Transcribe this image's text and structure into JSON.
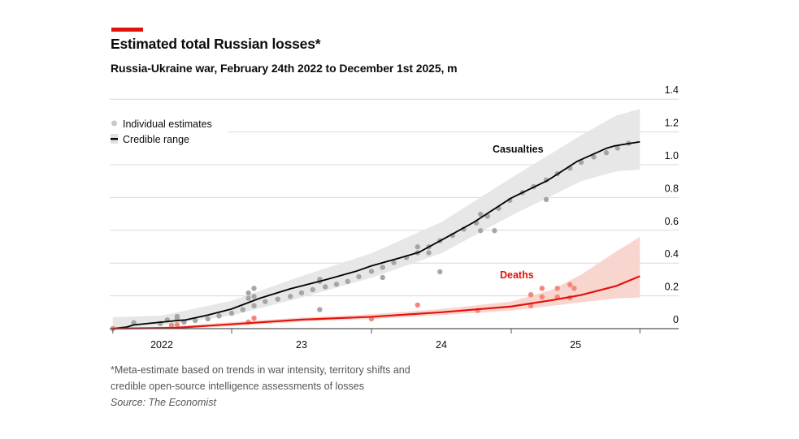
{
  "title": "Estimated total Russian losses*",
  "subtitle": "Russia-Ukraine war, February 24th 2022 to December 1st 2025, m",
  "footnote_lines": [
    "*Meta-estimate based on trends in war intensity, territory shifts and",
    "credible open-source intelligence assessments of losses"
  ],
  "source": "Source: The Economist",
  "colors": {
    "accent": "#e3120b",
    "casualties_line": "#000000",
    "casualties_band": "#e6e6e6",
    "casualties_dots": "#a6a6a6",
    "deaths_line": "#e3120b",
    "deaths_band": "#f9d3cc",
    "deaths_dots": "#f2877a",
    "grid": "#d9d9d9"
  },
  "chart_data": {
    "type": "line",
    "title": "Estimated total Russian losses*",
    "subtitle": "Russia-Ukraine war, February 24th 2022 to December 1st 2025, m",
    "xlabel": "",
    "ylabel": "",
    "xlim": [
      2022.15,
      2025.92
    ],
    "ylim": [
      0,
      1.4
    ],
    "yticks": [
      0,
      0.2,
      0.4,
      0.6,
      0.8,
      1.0,
      1.2,
      1.4
    ],
    "ytick_labels": [
      "0",
      "0.2",
      "0.4",
      "0.6",
      "0.8",
      "1.0",
      "1.2",
      "1.4"
    ],
    "xtick_labels": [
      {
        "label": "2022",
        "at": 2022.5
      },
      {
        "label": "23",
        "at": 2023.5
      },
      {
        "label": "24",
        "at": 2024.5
      },
      {
        "label": "25",
        "at": 2025.46
      }
    ],
    "xtick_marks": [
      2022.15,
      2023,
      2024,
      2025,
      2025.92
    ],
    "grid": true,
    "y_axis_position": "right",
    "legend": {
      "position": "top-left",
      "items": [
        {
          "label": "Individual estimates",
          "marker": "dot"
        },
        {
          "label": "Credible range",
          "marker": "band-with-line"
        }
      ]
    },
    "series": [
      {
        "name": "Casualties",
        "line": [
          [
            2022.15,
            0
          ],
          [
            2022.25,
            0.01
          ],
          [
            2022.3,
            0.023
          ],
          [
            2022.62,
            0.05
          ],
          [
            2022.67,
            0.053
          ],
          [
            2022.83,
            0.083
          ],
          [
            2023.0,
            0.12
          ],
          [
            2023.2,
            0.185
          ],
          [
            2023.42,
            0.243
          ],
          [
            2023.68,
            0.3
          ],
          [
            2023.89,
            0.35
          ],
          [
            2024.0,
            0.383
          ],
          [
            2024.21,
            0.433
          ],
          [
            2024.34,
            0.466
          ],
          [
            2024.52,
            0.549
          ],
          [
            2024.73,
            0.648
          ],
          [
            2025.0,
            0.797
          ],
          [
            2025.16,
            0.863
          ],
          [
            2025.26,
            0.904
          ],
          [
            2025.47,
            1.02
          ],
          [
            2025.68,
            1.1
          ],
          [
            2025.74,
            1.115
          ],
          [
            2025.92,
            1.14
          ]
        ],
        "band_upper": [
          [
            2022.15,
            0.07
          ],
          [
            2022.5,
            0.08
          ],
          [
            2023.0,
            0.17
          ],
          [
            2023.5,
            0.32
          ],
          [
            2024.0,
            0.46
          ],
          [
            2024.5,
            0.65
          ],
          [
            2025.0,
            0.92
          ],
          [
            2025.5,
            1.18
          ],
          [
            2025.75,
            1.3
          ],
          [
            2025.92,
            1.34
          ]
        ],
        "band_lower": [
          [
            2022.15,
            0
          ],
          [
            2022.5,
            0.02
          ],
          [
            2023.0,
            0.08
          ],
          [
            2023.5,
            0.19
          ],
          [
            2024.0,
            0.31
          ],
          [
            2024.5,
            0.46
          ],
          [
            2025.0,
            0.69
          ],
          [
            2025.5,
            0.9
          ],
          [
            2025.75,
            0.96
          ],
          [
            2025.92,
            0.97
          ]
        ],
        "estimates": [
          [
            2022.3,
            0.036
          ],
          [
            2022.49,
            0.031
          ],
          [
            2022.54,
            0.053
          ],
          [
            2022.61,
            0.074
          ],
          [
            2022.61,
            0.061
          ],
          [
            2022.66,
            0.04
          ],
          [
            2022.74,
            0.05
          ],
          [
            2022.83,
            0.06
          ],
          [
            2022.91,
            0.078
          ],
          [
            2023.0,
            0.094
          ],
          [
            2023.08,
            0.116
          ],
          [
            2023.12,
            0.218
          ],
          [
            2023.12,
            0.185
          ],
          [
            2023.16,
            0.246
          ],
          [
            2023.16,
            0.197
          ],
          [
            2023.16,
            0.14
          ],
          [
            2023.24,
            0.165
          ],
          [
            2023.33,
            0.18
          ],
          [
            2023.42,
            0.197
          ],
          [
            2023.5,
            0.218
          ],
          [
            2023.58,
            0.238
          ],
          [
            2023.63,
            0.301
          ],
          [
            2023.63,
            0.288
          ],
          [
            2023.63,
            0.116
          ],
          [
            2023.67,
            0.255
          ],
          [
            2023.75,
            0.271
          ],
          [
            2023.83,
            0.288
          ],
          [
            2023.91,
            0.317
          ],
          [
            2024.0,
            0.35
          ],
          [
            2024.08,
            0.374
          ],
          [
            2024.08,
            0.312
          ],
          [
            2024.16,
            0.403
          ],
          [
            2024.25,
            0.433
          ],
          [
            2024.33,
            0.499
          ],
          [
            2024.33,
            0.463
          ],
          [
            2024.41,
            0.499
          ],
          [
            2024.41,
            0.463
          ],
          [
            2024.49,
            0.536
          ],
          [
            2024.49,
            0.347
          ],
          [
            2024.58,
            0.569
          ],
          [
            2024.66,
            0.607
          ],
          [
            2024.75,
            0.645
          ],
          [
            2024.78,
            0.698
          ],
          [
            2024.78,
            0.598
          ],
          [
            2024.83,
            0.686
          ],
          [
            2024.88,
            0.598
          ],
          [
            2024.91,
            0.734
          ],
          [
            2024.99,
            0.783
          ],
          [
            2025.08,
            0.83
          ],
          [
            2025.16,
            0.866
          ],
          [
            2025.25,
            0.907
          ],
          [
            2025.25,
            0.788
          ],
          [
            2025.33,
            0.945
          ],
          [
            2025.42,
            0.979
          ],
          [
            2025.5,
            1.015
          ],
          [
            2025.59,
            1.048
          ],
          [
            2025.68,
            1.073
          ],
          [
            2025.76,
            1.102
          ],
          [
            2025.84,
            1.131
          ]
        ]
      },
      {
        "name": "Deaths",
        "line": [
          [
            2022.15,
            0
          ],
          [
            2022.6,
            0.005
          ],
          [
            2023.0,
            0.027
          ],
          [
            2023.5,
            0.055
          ],
          [
            2024.0,
            0.072
          ],
          [
            2024.5,
            0.1
          ],
          [
            2025.0,
            0.135
          ],
          [
            2025.3,
            0.175
          ],
          [
            2025.5,
            0.205
          ],
          [
            2025.75,
            0.26
          ],
          [
            2025.92,
            0.32
          ]
        ],
        "band_upper": [
          [
            2022.15,
            0.005
          ],
          [
            2022.6,
            0.015
          ],
          [
            2023.0,
            0.04
          ],
          [
            2023.5,
            0.068
          ],
          [
            2024.0,
            0.088
          ],
          [
            2024.5,
            0.12
          ],
          [
            2025.0,
            0.165
          ],
          [
            2025.3,
            0.24
          ],
          [
            2025.5,
            0.33
          ],
          [
            2025.75,
            0.47
          ],
          [
            2025.92,
            0.56
          ]
        ],
        "band_lower": [
          [
            2022.15,
            0
          ],
          [
            2022.6,
            0
          ],
          [
            2023.0,
            0.015
          ],
          [
            2023.5,
            0.043
          ],
          [
            2024.0,
            0.058
          ],
          [
            2024.5,
            0.082
          ],
          [
            2025.0,
            0.11
          ],
          [
            2025.3,
            0.14
          ],
          [
            2025.5,
            0.16
          ],
          [
            2025.75,
            0.185
          ],
          [
            2025.92,
            0.19
          ]
        ],
        "estimates": [
          [
            2022.15,
            0.0
          ],
          [
            2022.57,
            0.02
          ],
          [
            2022.61,
            0.023
          ],
          [
            2023.12,
            0.04
          ],
          [
            2023.16,
            0.064
          ],
          [
            2024.0,
            0.06
          ],
          [
            2024.33,
            0.144
          ],
          [
            2024.76,
            0.111
          ],
          [
            2025.14,
            0.207
          ],
          [
            2025.14,
            0.14
          ],
          [
            2025.22,
            0.246
          ],
          [
            2025.22,
            0.193
          ],
          [
            2025.33,
            0.246
          ],
          [
            2025.33,
            0.193
          ],
          [
            2025.42,
            0.268
          ],
          [
            2025.42,
            0.188
          ],
          [
            2025.45,
            0.246
          ]
        ]
      }
    ]
  }
}
